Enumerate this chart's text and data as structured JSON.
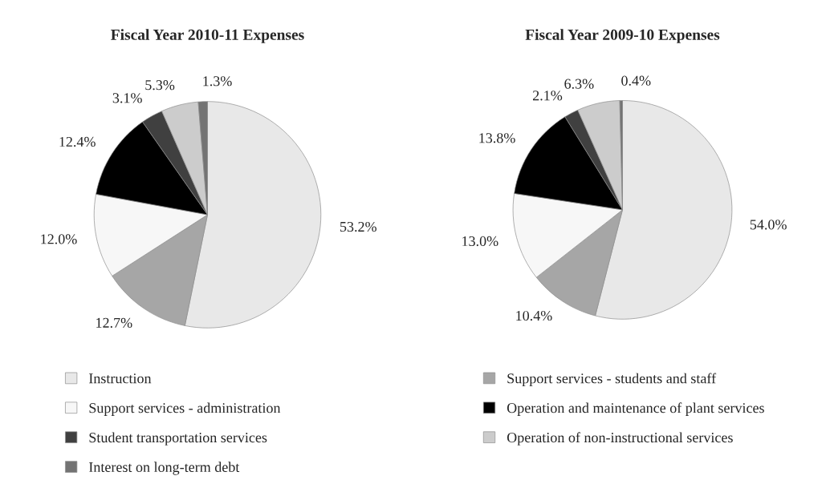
{
  "chart_data": [
    {
      "type": "pie",
      "title": "Fiscal Year 2010-11 Expenses",
      "categories": [
        "Instruction",
        "Support services - students and staff",
        "Support services - administration",
        "Operation and maintenance of plant services",
        "Student transportation services",
        "Operation of non-instructional services",
        "Interest on long-term debt"
      ],
      "values": [
        53.2,
        12.7,
        12.0,
        12.4,
        3.1,
        5.3,
        1.3
      ],
      "value_labels": [
        "53.2%",
        "12.7%",
        "12.0%",
        "12.4%",
        "3.1%",
        "5.3%",
        "1.3%"
      ],
      "colors": [
        "#e8e8e8",
        "#a6a6a6",
        "#f7f7f7",
        "#000000",
        "#404040",
        "#cccccc",
        "#737373"
      ],
      "legend": "bottom"
    },
    {
      "type": "pie",
      "title": "Fiscal Year 2009-10 Expenses",
      "categories": [
        null,
        null,
        null,
        null,
        null,
        null,
        null
      ],
      "values": [
        54.0,
        10.4,
        13.0,
        13.8,
        2.1,
        6.3,
        0.4
      ],
      "value_labels": [
        "54.0%",
        "10.4%",
        "13.0%",
        "13.8%",
        "2.1%",
        "6.3%",
        "0.4%"
      ],
      "colors": [
        "#e8e8e8",
        "#a6a6a6",
        "#f7f7f7",
        "#000000",
        "#404040",
        "#cccccc",
        "#737373"
      ]
    }
  ]
}
